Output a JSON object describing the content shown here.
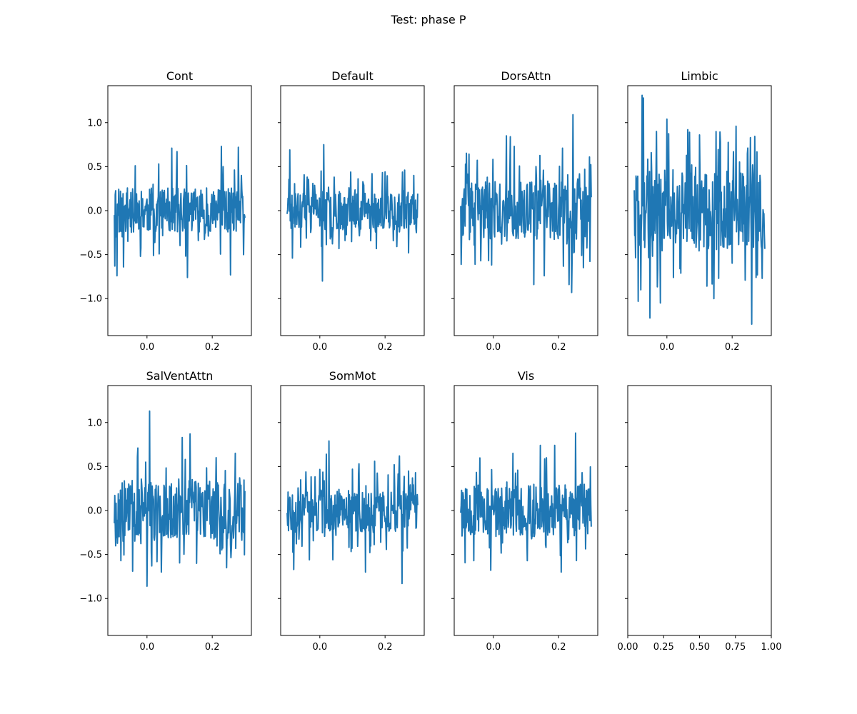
{
  "chart_data": {
    "type": "line",
    "title": "Test: phase P",
    "color": "#1f77b4",
    "x_range": [
      -0.1,
      0.3
    ],
    "n_points": 301,
    "xlim": [
      -0.12,
      0.32
    ],
    "ylim": [
      -1.42,
      1.42
    ],
    "x_ticks": [
      0.0,
      0.2
    ],
    "x_tick_labels": [
      "0.0",
      "0.2"
    ],
    "y_ticks": [
      1.0,
      0.5,
      0.0,
      -0.5,
      -1.0
    ],
    "y_tick_labels": [
      "1.0",
      "0.5",
      "0.0",
      "−0.5",
      "−1.0"
    ],
    "shared_y": true,
    "panels": [
      {
        "title": "Cont",
        "seed": 11,
        "amp": 0.26,
        "spikes": [
          [
            0.003,
            -0.63
          ],
          [
            0.02,
            -0.74
          ],
          [
            0.07,
            -0.64
          ],
          [
            0.16,
            0.51
          ],
          [
            0.34,
            0.53
          ],
          [
            0.44,
            0.71
          ],
          [
            0.48,
            0.67
          ],
          [
            0.56,
            -0.76
          ],
          [
            0.82,
            0.73
          ],
          [
            0.89,
            -0.73
          ],
          [
            0.95,
            0.72
          ],
          [
            0.99,
            -0.5
          ]
        ]
      },
      {
        "title": "Default",
        "seed": 23,
        "amp": 0.22,
        "spikes": [
          [
            0.02,
            0.69
          ],
          [
            0.04,
            -0.54
          ],
          [
            0.26,
            0.45
          ],
          [
            0.27,
            -0.8
          ],
          [
            0.28,
            0.75
          ],
          [
            0.36,
            0.38
          ],
          [
            0.65,
            0.42
          ],
          [
            0.75,
            0.44
          ],
          [
            0.9,
            0.46
          ],
          [
            0.93,
            -0.48
          ],
          [
            0.97,
            0.4
          ],
          [
            0.99,
            -0.25
          ]
        ]
      },
      {
        "title": "DorsAttn",
        "seed": 37,
        "amp": 0.33,
        "spikes": [
          [
            0.11,
            -0.61
          ],
          [
            0.35,
            0.85
          ],
          [
            0.38,
            0.84
          ],
          [
            0.41,
            0.73
          ],
          [
            0.56,
            -0.84
          ],
          [
            0.64,
            -0.74
          ],
          [
            0.78,
            0.71
          ],
          [
            0.83,
            -0.84
          ],
          [
            0.85,
            -0.93
          ],
          [
            0.86,
            1.09
          ],
          [
            0.95,
            0.47
          ],
          [
            0.98,
            -0.12
          ]
        ]
      },
      {
        "title": "Limbic",
        "seed": 41,
        "amp": 0.45,
        "spikes": [
          [
            0.03,
            -1.03
          ],
          [
            0.05,
            -0.9
          ],
          [
            0.06,
            1.31
          ],
          [
            0.07,
            1.28
          ],
          [
            0.12,
            -1.22
          ],
          [
            0.17,
            0.9
          ],
          [
            0.2,
            -1.05
          ],
          [
            0.25,
            1.04
          ],
          [
            0.3,
            -0.76
          ],
          [
            0.41,
            0.92
          ],
          [
            0.5,
            0.86
          ],
          [
            0.61,
            -1.0
          ],
          [
            0.66,
            0.78
          ],
          [
            0.78,
            0.96
          ],
          [
            0.85,
            -0.79
          ],
          [
            0.89,
            0.83
          ],
          [
            0.9,
            -1.29
          ],
          [
            0.98,
            -0.77
          ]
        ]
      },
      {
        "title": "SalVentAttn",
        "seed": 53,
        "amp": 0.33,
        "spikes": [
          [
            0.05,
            -0.57
          ],
          [
            0.14,
            -0.69
          ],
          [
            0.18,
            0.71
          ],
          [
            0.24,
            0.55
          ],
          [
            0.25,
            -0.86
          ],
          [
            0.27,
            1.13
          ],
          [
            0.36,
            -0.7
          ],
          [
            0.52,
            0.83
          ],
          [
            0.58,
            0.87
          ],
          [
            0.63,
            -0.6
          ],
          [
            0.78,
            0.6
          ],
          [
            0.86,
            -0.65
          ],
          [
            0.99,
            -0.25
          ]
        ]
      },
      {
        "title": "SomMot",
        "seed": 67,
        "amp": 0.24,
        "spikes": [
          [
            0.05,
            -0.67
          ],
          [
            0.17,
            -0.56
          ],
          [
            0.3,
            0.64
          ],
          [
            0.32,
            0.79
          ],
          [
            0.35,
            -0.56
          ],
          [
            0.5,
            0.47
          ],
          [
            0.55,
            0.53
          ],
          [
            0.6,
            -0.7
          ],
          [
            0.67,
            0.56
          ],
          [
            0.82,
            0.52
          ],
          [
            0.86,
            0.62
          ],
          [
            0.88,
            -0.83
          ],
          [
            0.96,
            0.37
          ],
          [
            0.99,
            -0.19
          ]
        ]
      },
      {
        "title": "Vis",
        "seed": 79,
        "amp": 0.3,
        "spikes": [
          [
            0.02,
            0.16
          ],
          [
            0.1,
            -0.57
          ],
          [
            0.23,
            -0.68
          ],
          [
            0.4,
            0.65
          ],
          [
            0.51,
            -0.57
          ],
          [
            0.61,
            0.74
          ],
          [
            0.72,
            0.74
          ],
          [
            0.77,
            -0.7
          ],
          [
            0.88,
            0.88
          ],
          [
            0.93,
            0.43
          ],
          [
            0.98,
            -0.05
          ]
        ]
      }
    ],
    "empty_panel": {
      "x_ticks": [
        0.0,
        0.25,
        0.5,
        0.75,
        1.0
      ],
      "x_tick_labels": [
        "0.00",
        "0.25",
        "0.50",
        "0.75",
        "1.00"
      ]
    }
  }
}
